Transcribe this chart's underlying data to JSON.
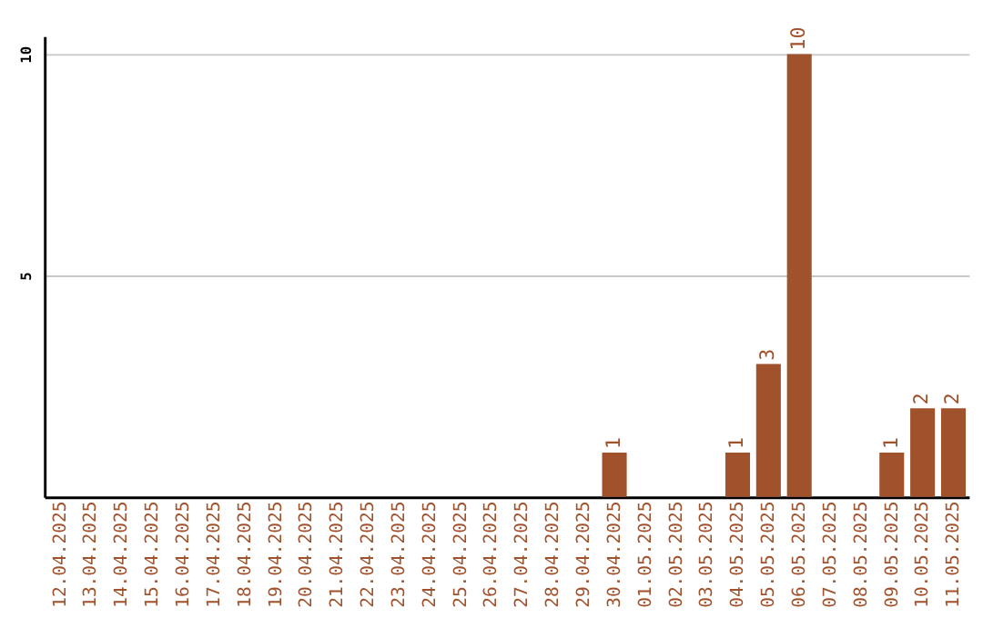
{
  "chart_data": {
    "type": "bar",
    "categories": [
      "12.04.2025",
      "13.04.2025",
      "14.04.2025",
      "15.04.2025",
      "16.04.2025",
      "17.04.2025",
      "18.04.2025",
      "19.04.2025",
      "20.04.2025",
      "21.04.2025",
      "22.04.2025",
      "23.04.2025",
      "24.04.2025",
      "25.04.2025",
      "26.04.2025",
      "27.04.2025",
      "28.04.2025",
      "29.04.2025",
      "30.04.2025",
      "01.05.2025",
      "02.05.2025",
      "03.05.2025",
      "04.05.2025",
      "05.05.2025",
      "06.05.2025",
      "07.05.2025",
      "08.05.2025",
      "09.05.2025",
      "10.05.2025",
      "11.05.2025"
    ],
    "values": [
      0,
      0,
      0,
      0,
      0,
      0,
      0,
      0,
      0,
      0,
      0,
      0,
      0,
      0,
      0,
      0,
      0,
      0,
      1,
      0,
      0,
      0,
      1,
      3,
      10,
      0,
      0,
      1,
      2,
      2
    ],
    "value_labels": [
      null,
      null,
      null,
      null,
      null,
      null,
      null,
      null,
      null,
      null,
      null,
      null,
      null,
      null,
      null,
      null,
      null,
      null,
      "1",
      null,
      null,
      null,
      "1",
      "3",
      "10",
      null,
      null,
      "1",
      "2",
      "2"
    ],
    "color": "#a0522d",
    "ylim": [
      0,
      10.4
    ],
    "yticks": [
      5,
      10
    ],
    "grid": "y"
  }
}
